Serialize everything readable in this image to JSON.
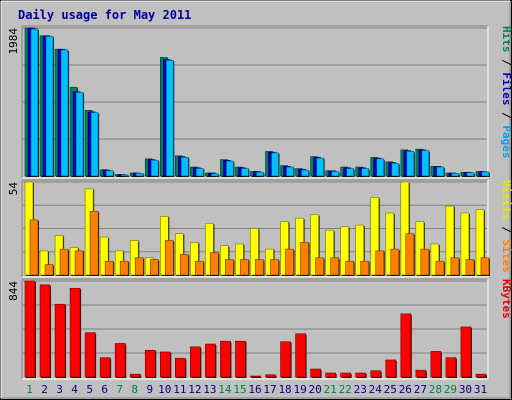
{
  "chart_data": {
    "type": "bar",
    "title": "Daily usage for May 2011",
    "categories": [
      "1",
      "2",
      "3",
      "4",
      "5",
      "6",
      "7",
      "8",
      "9",
      "10",
      "11",
      "12",
      "13",
      "14",
      "15",
      "16",
      "17",
      "18",
      "19",
      "20",
      "21",
      "22",
      "23",
      "24",
      "25",
      "26",
      "27",
      "28",
      "29",
      "30",
      "31"
    ],
    "weekend_days": [
      "1",
      "7",
      "8",
      "14",
      "15",
      "21",
      "22",
      "28",
      "29"
    ],
    "panels": [
      {
        "id": "hits",
        "ymax_label": "1984",
        "ymax": 1984,
        "right_label_parts": [
          {
            "text": "Pages",
            "color": "#00a0e8"
          },
          {
            "text": " / ",
            "color": "#000000"
          },
          {
            "text": "Files",
            "color": "#0000c0"
          },
          {
            "text": " / ",
            "color": "#000000"
          },
          {
            "text": "Hits",
            "color": "#008060"
          }
        ],
        "series": [
          {
            "name": "Hits",
            "color": "#008060",
            "values": [
              1984,
              1880,
              1700,
              1190,
              880,
              85,
              20,
              40,
              230,
              1590,
              270,
              120,
              40,
              220,
              120,
              60,
              330,
              140,
              100,
              260,
              70,
              120,
              120,
              250,
              190,
              350,
              360,
              130,
              40,
              50,
              60
            ]
          },
          {
            "name": "Files",
            "color": "#0000c0",
            "values": [
              1984,
              1880,
              1700,
              1130,
              860,
              80,
              20,
              40,
              220,
              1560,
              260,
              110,
              40,
              210,
              110,
              60,
              320,
              130,
              90,
              250,
              70,
              110,
              110,
              240,
              180,
              340,
              350,
              130,
              40,
              50,
              60
            ]
          },
          {
            "name": "Pages",
            "color": "#00c0ff",
            "values": [
              1970,
              1870,
              1690,
              1120,
              850,
              70,
              15,
              35,
              210,
              1550,
              250,
              100,
              30,
              200,
              100,
              50,
              310,
              120,
              80,
              240,
              60,
              100,
              100,
              230,
              170,
              330,
              340,
              120,
              35,
              45,
              55
            ]
          }
        ]
      },
      {
        "id": "visits",
        "ymax_label": "54",
        "ymax": 54,
        "right_label_parts": [
          {
            "text": "Sites",
            "color": "#ff8000"
          },
          {
            "text": " / ",
            "color": "#000000"
          },
          {
            "text": "Visits",
            "color": "#e8e800"
          }
        ],
        "series": [
          {
            "name": "Visits",
            "color": "#ffff00",
            "values": [
              54,
              14,
              23,
              16,
              50,
              22,
              14,
              20,
              10,
              34,
              24,
              19,
              30,
              17,
              18,
              27,
              15,
              31,
              33,
              35,
              26,
              28,
              29,
              45,
              36,
              54,
              31,
              18,
              40,
              36,
              38
            ]
          },
          {
            "name": "Sites",
            "color": "#ff8000",
            "values": [
              32,
              6,
              15,
              14,
              37,
              8,
              8,
              10,
              9,
              20,
              12,
              8,
              13,
              9,
              9,
              9,
              9,
              15,
              19,
              10,
              10,
              8,
              8,
              14,
              15,
              24,
              15,
              8,
              10,
              9,
              10
            ]
          }
        ]
      },
      {
        "id": "kbytes",
        "ymax_label": "844",
        "ymax": 844,
        "right_label_parts": [
          {
            "text": "KBytes",
            "color": "#e00000"
          }
        ],
        "series": [
          {
            "name": "KBytes",
            "color": "#ff0000",
            "values": [
              844,
              810,
              640,
              780,
              390,
              170,
              295,
              25,
              235,
              220,
              165,
              265,
              290,
              315,
              315,
              5,
              20,
              310,
              380,
              70,
              35,
              35,
              35,
              55,
              150,
              555,
              60,
              225,
              170,
              440,
              25
            ]
          }
        ]
      }
    ]
  }
}
